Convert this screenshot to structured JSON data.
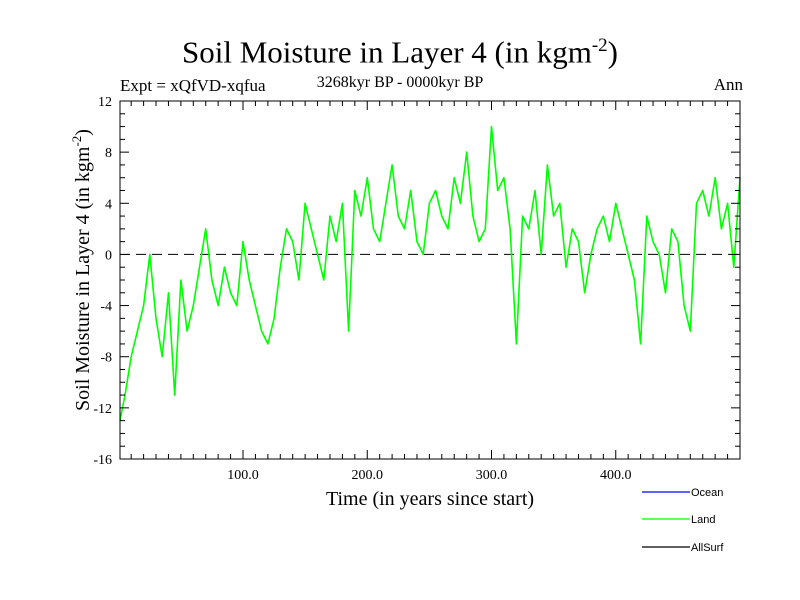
{
  "header": {
    "title_main": "Soil Moisture in Layer 4 (in kgm",
    "title_exp": "-2",
    "title_close": ")",
    "expt": "Expt = xQfVD-xqfua",
    "period": "3268kyr BP - 0000kyr BP",
    "season": "Ann"
  },
  "chart_data": {
    "type": "line",
    "title": "Soil Moisture in Layer 4 (in kgm-2)",
    "xlabel": "Time (in years since start)",
    "ylabel": "Soil Moisture in Layer 4 (in kgm-2)",
    "ylabel_main": "Soil Moisture in Layer 4 (in kgm",
    "ylabel_exp": "-2",
    "ylabel_close": ")",
    "xlim": [
      1,
      500
    ],
    "ylim": [
      -16,
      12
    ],
    "x_ticks": [
      100,
      200,
      300,
      400
    ],
    "x_tick_labels": [
      "100.0",
      "200.0",
      "300.0",
      "400.0"
    ],
    "y_ticks": [
      -16,
      -12,
      -8,
      -4,
      0,
      4,
      8,
      12
    ],
    "y_tick_labels": [
      "-16",
      "-12",
      "-8",
      "-4",
      "0",
      "4",
      "8",
      "12"
    ],
    "reference_line": {
      "y": 0,
      "style": "dashed"
    },
    "series": [
      {
        "name": "Land",
        "color": "#00ff00",
        "x": [
          1,
          5,
          10,
          15,
          20,
          25,
          30,
          35,
          40,
          45,
          50,
          55,
          60,
          65,
          70,
          75,
          80,
          85,
          90,
          95,
          100,
          105,
          110,
          115,
          120,
          125,
          130,
          135,
          140,
          145,
          150,
          155,
          160,
          165,
          170,
          175,
          180,
          185,
          190,
          195,
          200,
          205,
          210,
          215,
          220,
          225,
          230,
          235,
          240,
          245,
          250,
          255,
          260,
          265,
          270,
          275,
          280,
          285,
          290,
          295,
          300,
          305,
          310,
          315,
          320,
          325,
          330,
          335,
          340,
          345,
          350,
          355,
          360,
          365,
          370,
          375,
          380,
          385,
          390,
          395,
          400,
          405,
          410,
          415,
          420,
          425,
          430,
          435,
          440,
          445,
          450,
          455,
          460,
          465,
          470,
          475,
          480,
          485,
          490,
          495,
          500
        ],
        "values": [
          -13,
          -11,
          -8,
          -6,
          -4,
          0,
          -5,
          -8,
          -3,
          -11,
          -2,
          -6,
          -4,
          -1,
          2,
          -2,
          -4,
          -1,
          -3,
          -4,
          1,
          -2,
          -4,
          -6,
          -7,
          -5,
          -1,
          2,
          1,
          -2,
          4,
          2,
          0,
          -2,
          3,
          1,
          4,
          -6,
          5,
          3,
          6,
          2,
          1,
          4,
          7,
          3,
          2,
          5,
          1,
          0,
          4,
          5,
          3,
          2,
          6,
          4,
          8,
          3,
          1,
          2,
          10,
          5,
          6,
          2,
          -7,
          3,
          2,
          5,
          0,
          7,
          3,
          4,
          -1,
          2,
          1,
          -3,
          0,
          2,
          3,
          1,
          4,
          2,
          0,
          -2,
          -7,
          3,
          1,
          0,
          -3,
          2,
          1,
          -4,
          -6,
          4,
          5,
          3,
          6,
          2,
          4,
          -1,
          6
        ]
      }
    ],
    "legend": [
      {
        "name": "Ocean",
        "color": "#0000ff"
      },
      {
        "name": "Land",
        "color": "#00ff00"
      },
      {
        "name": "AllSurf",
        "color": "#000000"
      }
    ]
  }
}
